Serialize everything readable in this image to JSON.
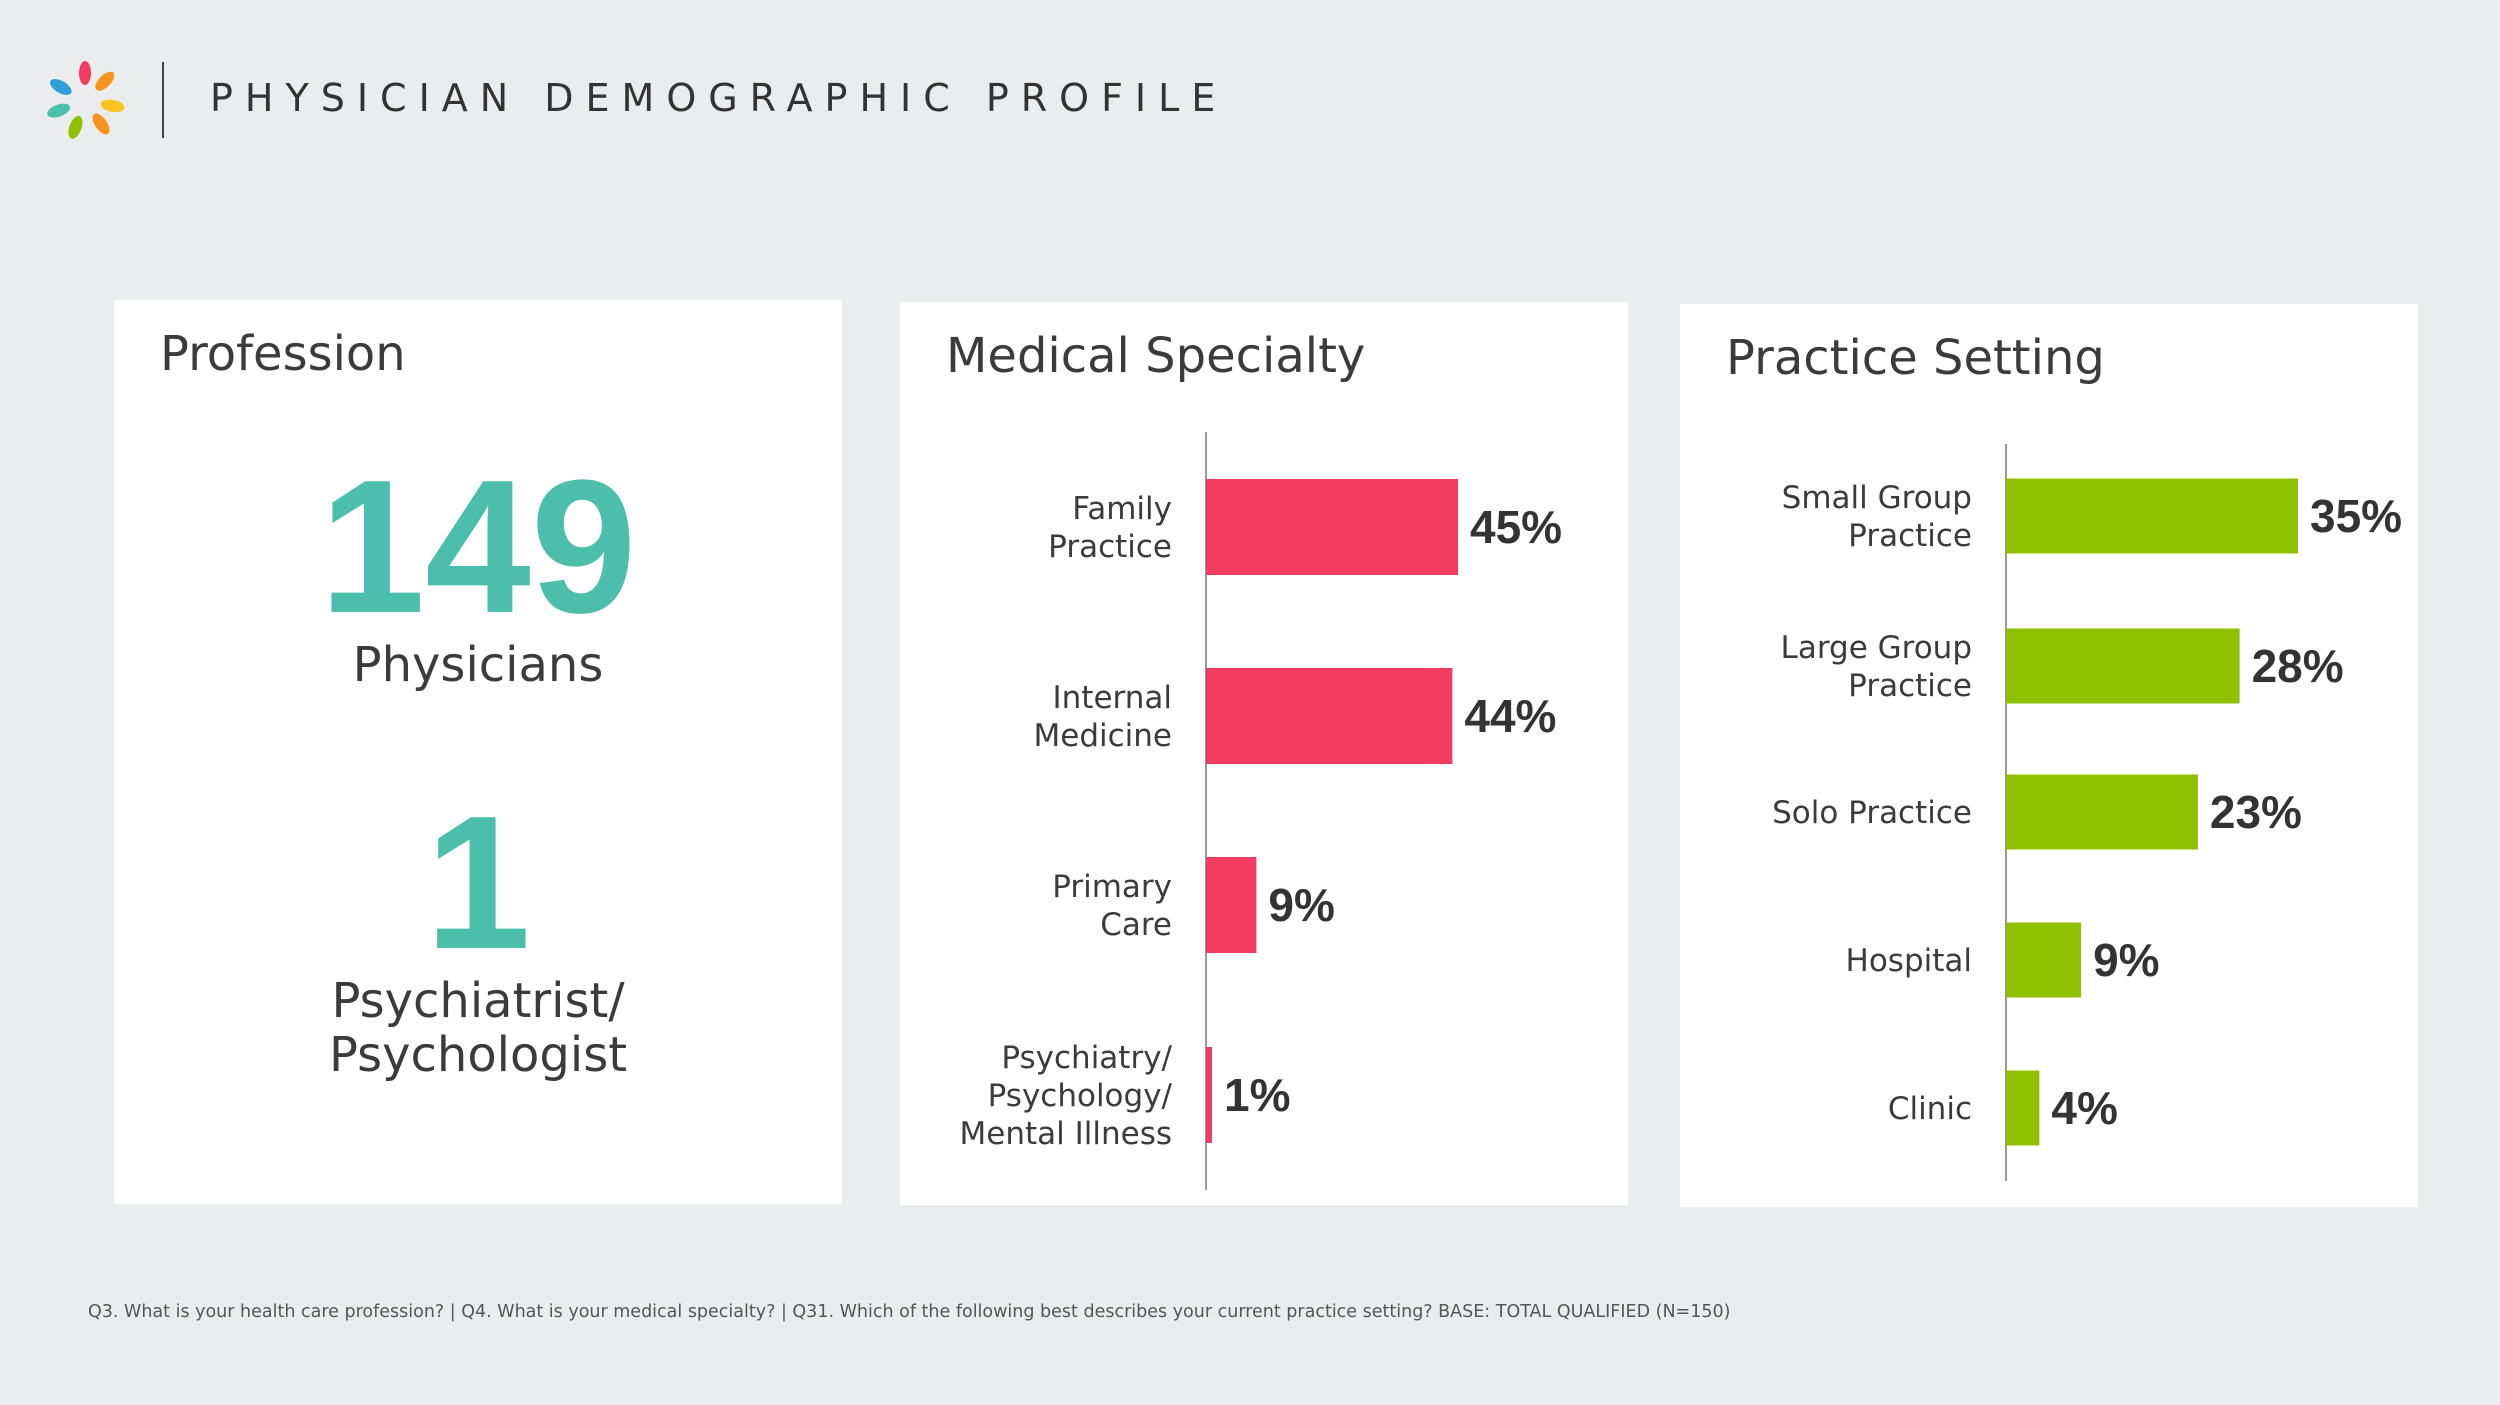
{
  "header": {
    "title": "PHYSICIAN DEMOGRAPHIC PROFILE"
  },
  "profession": {
    "title": "Profession",
    "stats": [
      {
        "value": "149",
        "label": "Physicians"
      },
      {
        "value": "1",
        "label_line1": "Psychiatrist/",
        "label_line2": "Psychologist"
      }
    ]
  },
  "colors": {
    "teal": "#4cbfac",
    "specialty_bar": "#f23c62",
    "setting_bar": "#8fc100"
  },
  "chart_data": [
    {
      "type": "bar",
      "orientation": "horizontal",
      "title": "Medical Specialty",
      "categories": [
        "Family Practice",
        "Internal Medicine",
        "Primary Care",
        "Psychiatry/ Psychology/ Mental Illness"
      ],
      "category_lines": [
        [
          "Family",
          "Practice"
        ],
        [
          "Internal",
          "Medicine"
        ],
        [
          "Primary",
          "Care"
        ],
        [
          "Psychiatry/",
          "Psychology/",
          "Mental Illness"
        ]
      ],
      "values": [
        45,
        44,
        9,
        1
      ],
      "value_labels": [
        "45%",
        "44%",
        "9%",
        "1%"
      ],
      "xlim": [
        0,
        45
      ]
    },
    {
      "type": "bar",
      "orientation": "horizontal",
      "title": "Practice Setting",
      "categories": [
        "Small Group Practice",
        "Large Group Practice",
        "Solo Practice",
        "Hospital",
        "Clinic"
      ],
      "category_lines": [
        [
          "Small Group",
          "Practice"
        ],
        [
          "Large Group",
          "Practice"
        ],
        [
          "Solo Practice"
        ],
        [
          "Hospital"
        ],
        [
          "Clinic"
        ]
      ],
      "values": [
        35,
        28,
        23,
        9,
        4
      ],
      "value_labels": [
        "35%",
        "28%",
        "23%",
        "9%",
        "4%"
      ],
      "xlim": [
        0,
        35
      ]
    }
  ],
  "footnote": "Q3.  What is your health care profession? | Q4. What is your medical specialty? | Q31. Which of the following best describes your current practice setting? BASE: TOTAL QUALIFIED (N=150)"
}
